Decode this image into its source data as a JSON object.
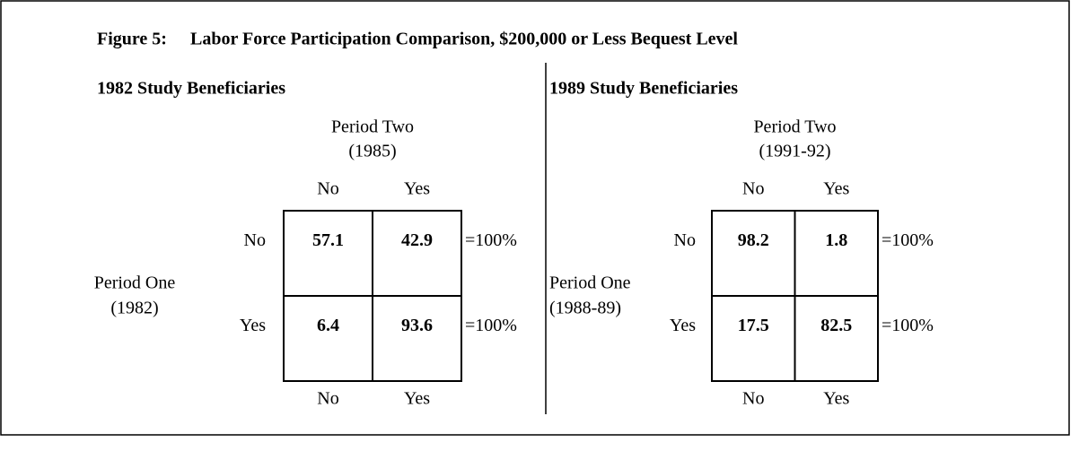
{
  "figure": {
    "label": "Figure 5:",
    "title": "Labor Force Participation Comparison, $200,000 or Less Bequest Level"
  },
  "panels": [
    {
      "heading": "1982 Study Beneficiaries",
      "column_header": [
        "Period Two",
        "(1985)"
      ],
      "columns": [
        "No",
        "Yes"
      ],
      "row_header": [
        "Period One",
        "(1982)"
      ],
      "rows": [
        "No",
        "Yes"
      ],
      "cells": [
        [
          57.1,
          42.9
        ],
        [
          6.4,
          93.6
        ]
      ],
      "row_total": "=100%"
    },
    {
      "heading": "1989 Study Beneficiaries",
      "column_header": [
        "Period Two",
        "(1991-92)"
      ],
      "columns": [
        "No",
        "Yes"
      ],
      "row_header": [
        "Period One",
        "(1988-89)"
      ],
      "rows": [
        "No",
        "Yes"
      ],
      "cells": [
        [
          98.2,
          1.8
        ],
        [
          17.5,
          82.5
        ]
      ],
      "row_total": "=100%"
    }
  ]
}
